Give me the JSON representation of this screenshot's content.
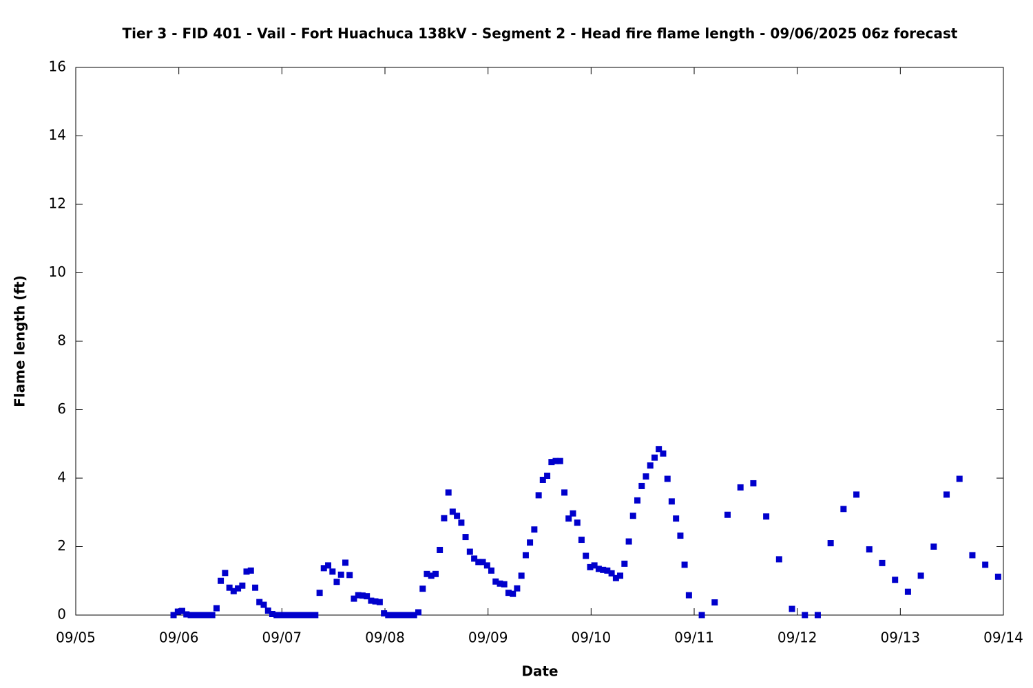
{
  "chart_data": {
    "type": "scatter",
    "title": "Tier 3 - FID 401 - Vail - Fort Huachuca 138kV - Segment 2 - Head fire flame length - 09/06/2025 06z forecast",
    "x_label": "Date",
    "y_label": "Flame length (ft)",
    "xlim": [
      0,
      9
    ],
    "xticks": [
      {
        "value": 0,
        "label": "09/05"
      },
      {
        "value": 1,
        "label": "09/06"
      },
      {
        "value": 2,
        "label": "09/07"
      },
      {
        "value": 3,
        "label": "09/08"
      },
      {
        "value": 4,
        "label": "09/09"
      },
      {
        "value": 5,
        "label": "09/10"
      },
      {
        "value": 6,
        "label": "09/11"
      },
      {
        "value": 7,
        "label": "09/12"
      },
      {
        "value": 8,
        "label": "09/13"
      },
      {
        "value": 9,
        "label": "09/14"
      }
    ],
    "ylim": [
      0,
      16
    ],
    "yticks": [
      0,
      2,
      4,
      6,
      8,
      10,
      12,
      14,
      16
    ],
    "grid": false,
    "series": [
      {
        "color": "#0000cc",
        "x": [
          0.949,
          0.991,
          1.032,
          1.074,
          1.116,
          1.157,
          1.199,
          1.241,
          1.282,
          1.324,
          1.366,
          1.407,
          1.449,
          1.491,
          1.532,
          1.574,
          1.616,
          1.657,
          1.699,
          1.741,
          1.782,
          1.824,
          1.866,
          1.907,
          1.949,
          1.991,
          2.032,
          2.074,
          2.116,
          2.157,
          2.199,
          2.241,
          2.282,
          2.324,
          2.366,
          2.407,
          2.449,
          2.491,
          2.532,
          2.574,
          2.616,
          2.657,
          2.699,
          2.741,
          2.782,
          2.824,
          2.866,
          2.907,
          2.949,
          2.991,
          3.032,
          3.074,
          3.116,
          3.157,
          3.199,
          3.241,
          3.282,
          3.324,
          3.366,
          3.407,
          3.449,
          3.491,
          3.532,
          3.574,
          3.616,
          3.657,
          3.699,
          3.741,
          3.782,
          3.824,
          3.866,
          3.907,
          3.949,
          3.991,
          4.032,
          4.074,
          4.116,
          4.157,
          4.199,
          4.241,
          4.282,
          4.324,
          4.366,
          4.407,
          4.449,
          4.491,
          4.532,
          4.574,
          4.616,
          4.657,
          4.699,
          4.741,
          4.782,
          4.824,
          4.866,
          4.907,
          4.949,
          4.991,
          5.032,
          5.074,
          5.116,
          5.157,
          5.199,
          5.241,
          5.282,
          5.324,
          5.366,
          5.407,
          5.449,
          5.491,
          5.532,
          5.574,
          5.616,
          5.657,
          5.699,
          5.741,
          5.782,
          5.824,
          5.866,
          5.907,
          5.949,
          6.074,
          6.199,
          6.324,
          6.449,
          6.574,
          6.699,
          6.824,
          6.949,
          7.074,
          7.199,
          7.324,
          7.449,
          7.574,
          7.699,
          7.824,
          7.949,
          8.074,
          8.199,
          8.324,
          8.449,
          8.574,
          8.699,
          8.824,
          8.949
        ],
        "values": [
          0,
          0.1,
          0.12,
          0.02,
          0,
          0,
          0,
          0,
          0,
          0,
          0.2,
          1.0,
          1.23,
          0.8,
          0.7,
          0.78,
          0.86,
          1.27,
          1.3,
          0.8,
          0.38,
          0.3,
          0.13,
          0.03,
          0,
          0,
          0,
          0,
          0,
          0,
          0,
          0,
          0,
          0,
          0.65,
          1.37,
          1.45,
          1.27,
          0.97,
          1.18,
          1.53,
          1.17,
          0.48,
          0.58,
          0.57,
          0.55,
          0.42,
          0.4,
          0.38,
          0.05,
          0,
          0,
          0,
          0,
          0,
          0,
          0,
          0.08,
          0.77,
          1.2,
          1.15,
          1.2,
          1.9,
          2.83,
          3.58,
          3.02,
          2.9,
          2.7,
          2.28,
          1.85,
          1.65,
          1.55,
          1.55,
          1.45,
          1.3,
          0.98,
          0.92,
          0.9,
          0.65,
          0.62,
          0.78,
          1.15,
          1.75,
          2.12,
          2.5,
          3.5,
          3.95,
          4.07,
          4.47,
          4.5,
          4.5,
          3.58,
          2.82,
          2.97,
          2.7,
          2.2,
          1.73,
          1.4,
          1.45,
          1.35,
          1.32,
          1.3,
          1.22,
          1.08,
          1.15,
          1.5,
          2.15,
          2.9,
          3.35,
          3.77,
          4.05,
          4.37,
          4.6,
          4.85,
          4.72,
          3.98,
          3.32,
          2.82,
          2.32,
          1.47,
          0.58,
          0,
          0.37,
          2.93,
          3.73,
          3.85,
          2.88,
          1.63,
          0.18,
          0,
          0,
          2.1,
          3.1,
          3.52,
          1.92,
          1.52,
          1.03,
          0.68,
          1.15,
          2.0,
          3.52,
          3.98,
          1.75,
          1.47,
          1.12
        ]
      }
    ]
  }
}
